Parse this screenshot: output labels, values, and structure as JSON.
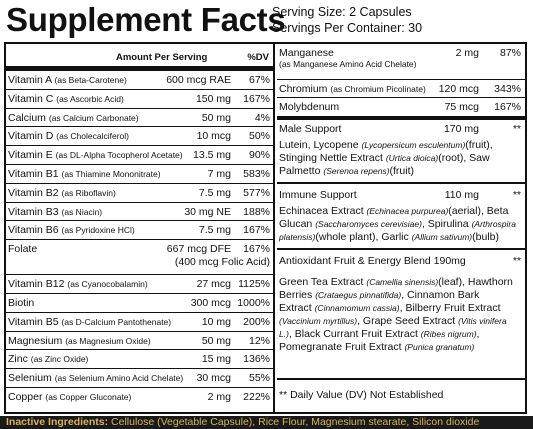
{
  "title": "Supplement Facts",
  "serving_size": "Serving Size: 2 Capsules",
  "servings_per_container": "Servings Per Container: 30",
  "left_header": {
    "amount": "Amount Per Serving",
    "dv": "%DV"
  },
  "left_rows": [
    {
      "name": "Vitamin A",
      "sub": "(as Beta-Carotene)",
      "amount": "600 mcg RAE",
      "dv": "67%"
    },
    {
      "name": "Vitamin C",
      "sub": "(as Ascorbic Acid)",
      "amount": "150 mg",
      "dv": "167%"
    },
    {
      "name": "Calcium",
      "sub": "(as Calcium Carbonate)",
      "amount": "50 mg",
      "dv": "4%"
    },
    {
      "name": "Vitamin D",
      "sub": "(as Cholecalciferol)",
      "amount": "10 mcg",
      "dv": "50%"
    },
    {
      "name": "Vitamin E",
      "sub": "(as DL-Alpha Tocopherol Acetate)",
      "amount": "13.5 mg",
      "dv": "90%"
    },
    {
      "name": "Vitamin B1",
      "sub": "(as Thiamine Mononitrate)",
      "amount": "7 mg",
      "dv": "583%"
    },
    {
      "name": "Vitamin B2",
      "sub": "(as Riboflavin)",
      "amount": "7.5 mg",
      "dv": "577%"
    },
    {
      "name": "Vitamin B3",
      "sub": "(as Niacin)",
      "amount": "30 mg NE",
      "dv": "188%"
    },
    {
      "name": "Vitamin B6",
      "sub": "(as Pyridoxine HCl)",
      "amount": "7.5 mg",
      "dv": "167%"
    },
    {
      "name": "Folate",
      "sub": "",
      "amount": "667 mcg DFE",
      "amount2": "(400 mcg Folic Acid)",
      "dv": "167%"
    },
    {
      "name": "Vitamin B12",
      "sub": "(as Cyanocobalamin)",
      "amount": "27 mcg",
      "dv": "1125%"
    },
    {
      "name": "Biotin",
      "sub": "",
      "amount": "300 mcg",
      "dv": "1000%"
    },
    {
      "name": "Vitamin B5",
      "sub": "(as D-Calcium Pantothenate)",
      "amount": "10 mg",
      "dv": "200%"
    },
    {
      "name": "Magnesium",
      "sub": "(as Magnesium Oxide)",
      "amount": "50 mg",
      "dv": "12%"
    },
    {
      "name": "Zinc",
      "sub": "(as Zinc Oxide)",
      "amount": "15 mg",
      "dv": "136%"
    },
    {
      "name": "Selenium",
      "sub": "(as Selenium Amino Acid Chelate)",
      "amount": "30 mcg",
      "dv": "55%"
    },
    {
      "name": "Copper",
      "sub": "(as Copper Gluconate)",
      "amount": "2 mg",
      "dv": "222%"
    }
  ],
  "right_rows": {
    "manganese": {
      "name": "Manganese",
      "sub": "(as Manganese Amino Acid Chelate)",
      "amount": "2 mg",
      "dv": "87%"
    },
    "chromium": {
      "name": "Chromium",
      "sub": "(as Chromium Picolinate)",
      "amount": "120 mcg",
      "dv": "343%"
    },
    "molybdenum": {
      "name": "Molybdenum",
      "amount": "75 mcg",
      "dv": "167%"
    },
    "male": {
      "name": "Male Support",
      "amount": "170 mg",
      "dv": "**"
    },
    "immune": {
      "name": "Immune Support",
      "amount": "110 mg",
      "dv": "**"
    },
    "antioxidant": {
      "name": "Antioxidant Fruit & Energy Blend 190mg",
      "dv": "**"
    }
  },
  "male_desc": [
    {
      "t": "Lutein, Lycopene ",
      "i": "(Lycopersicum esculentum)",
      "t2": "(fruit),"
    },
    {
      "t": "Stinging Nettle Extract ",
      "i": "(Urtica dioica)",
      "t2": "(root), Saw"
    },
    {
      "t": "Palmetto ",
      "i": "(Serenoa repens)",
      "t2": "(fruit)"
    }
  ],
  "immune_desc": [
    {
      "t": "Echinacea Extract ",
      "i": "(Echinacea purpurea)",
      "t2": "(aerial), Beta"
    },
    {
      "t": "Glucan ",
      "i": "(Saccharomyces cerevisiae)",
      "t2": ", Spirulina ",
      "i2": "(Arthrospira"
    },
    {
      "t": "",
      "i": "platensis)",
      "t2": "(whole plant), Garlic ",
      "i2": "(Allium sativum)",
      "t3": "(bulb)"
    }
  ],
  "antioxidant_desc": [
    {
      "t": "Green Tea Extract ",
      "i": "(Camellia sinensis)",
      "t2": "(leaf), Hawthorn"
    },
    {
      "t": "Berries ",
      "i": "(Crataegus pinnatifida)",
      "t2": ", Cinnamon Bark"
    },
    {
      "t": "Extract ",
      "i": "(Cinnamomum cassia)",
      "t2": ", Bilberry Fruit Extract"
    },
    {
      "t": "",
      "i": "(Vaccinium myrtillus)",
      "t2": ", Grape Seed Extract ",
      "i2": "(Vitis vinifera"
    },
    {
      "t": "",
      "i": "L.)",
      "t2": ", Black Currant Fruit Extract ",
      "i2": "(Ribes nigrum)",
      "t3": ","
    },
    {
      "t": "Pomegranate Fruit Extract ",
      "i": "(Punica granatum)",
      "t2": ""
    }
  ],
  "footnote": "** Daily Value (DV) Not Established",
  "inactive": {
    "label": "Inactive Ingredients:",
    "text": " Cellulose (Vegetable Capsule), Rice Flour, Magnesium stearate, Silicon dioxide"
  }
}
